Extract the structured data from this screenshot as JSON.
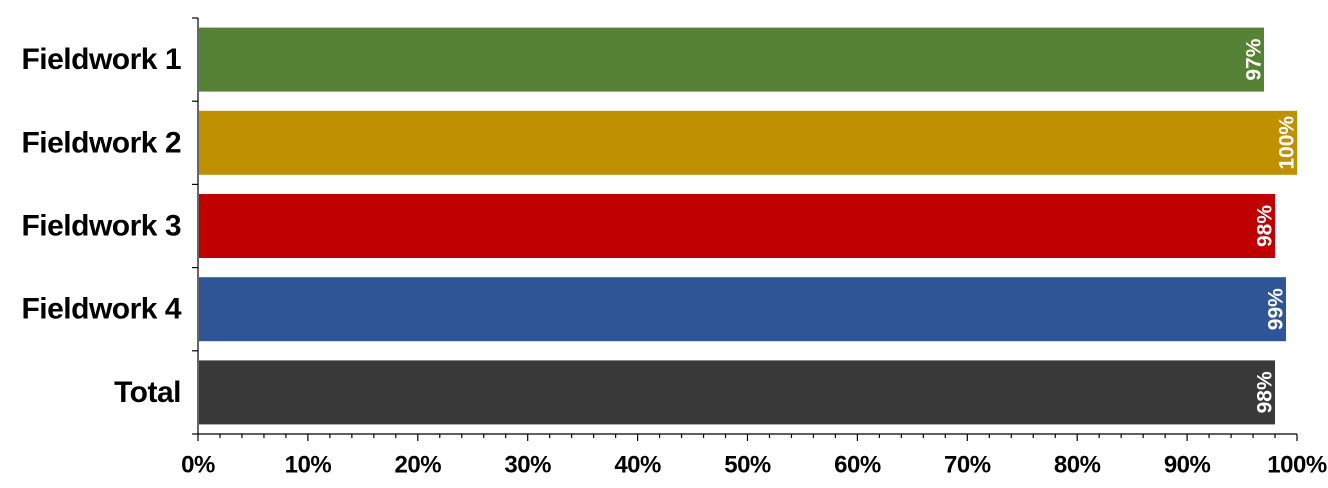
{
  "chart_data": {
    "type": "bar",
    "orientation": "horizontal",
    "categories": [
      "Fieldwork 1",
      "Fieldwork 2",
      "Fieldwork 3",
      "Fieldwork 4",
      "Total"
    ],
    "values": [
      97,
      100,
      98,
      99,
      98
    ],
    "data_labels": [
      "97%",
      "100%",
      "98%",
      "99%",
      "98%"
    ],
    "colors": [
      "#568235",
      "#BF9000",
      "#C00000",
      "#2F5597",
      "#3A3939"
    ],
    "xlim": [
      0,
      100
    ],
    "xticks": [
      0,
      10,
      20,
      30,
      40,
      50,
      60,
      70,
      80,
      90,
      100
    ],
    "xtick_labels": [
      "0%",
      "10%",
      "20%",
      "30%",
      "40%",
      "50%",
      "60%",
      "70%",
      "80%",
      "90%",
      "100%"
    ],
    "title": "",
    "xlabel": "",
    "ylabel": "",
    "grid": false,
    "legend": "none"
  }
}
